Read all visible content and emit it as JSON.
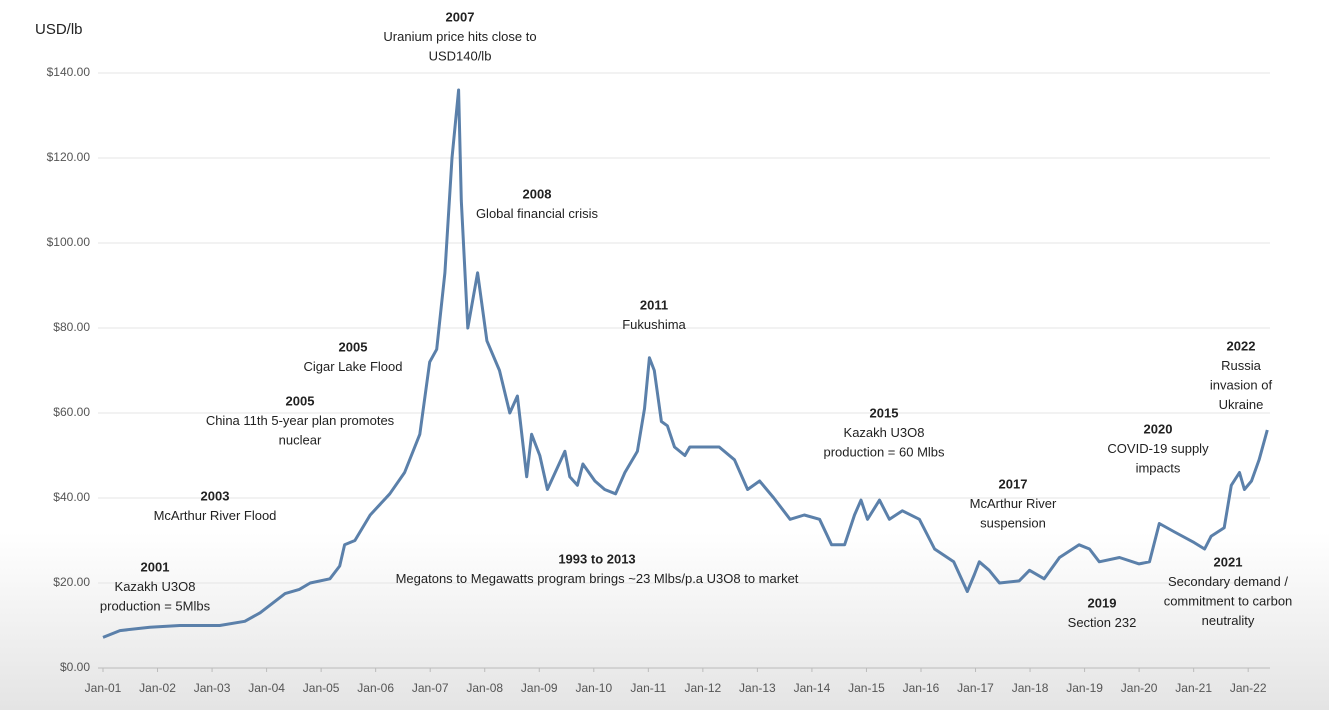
{
  "chart_data": {
    "type": "line",
    "y_axis_label": "USD/lb",
    "x": [
      2001,
      2001.31,
      2001.86,
      2002.41,
      2003.14,
      2003.6,
      2003.88,
      2004.34,
      2004.6,
      2004.8,
      2005.16,
      2005.34,
      2005.43,
      2005.62,
      2005.9,
      2006.26,
      2006.53,
      2006.81,
      2006.99,
      2007.12,
      2007.27,
      2007.4,
      2007.52,
      2007.57,
      2007.69,
      2007.87,
      2008.04,
      2008.27,
      2008.46,
      2008.6,
      2008.77,
      2008.86,
      2009.01,
      2009.15,
      2009.47,
      2009.56,
      2009.7,
      2009.8,
      2010.02,
      2010.2,
      2010.4,
      2010.57,
      2010.8,
      2010.93,
      2011.02,
      2011.11,
      2011.24,
      2011.35,
      2011.48,
      2011.67,
      2011.76,
      2012.3,
      2012.58,
      2012.82,
      2013.04,
      2013.3,
      2013.6,
      2013.86,
      2014.14,
      2014.36,
      2014.6,
      2014.78,
      2014.9,
      2015.02,
      2015.24,
      2015.42,
      2015.66,
      2015.97,
      2016.25,
      2016.6,
      2016.85,
      2016.98,
      2017.07,
      2017.25,
      2017.44,
      2017.8,
      2017.99,
      2018.26,
      2018.54,
      2018.9,
      2019.09,
      2019.27,
      2019.64,
      2020.0,
      2020.19,
      2020.37,
      2020.65,
      2021.01,
      2021.2,
      2021.32,
      2021.56,
      2021.69,
      2021.84,
      2021.93,
      2022.06,
      2022.2,
      2022.35
    ],
    "series": [
      {
        "name": "Uranium price",
        "color": "#5b80aa",
        "values": [
          7.2,
          8.8,
          9.6,
          10,
          10,
          11,
          13,
          17.5,
          18.5,
          20,
          21,
          24,
          29,
          30,
          36,
          41,
          46,
          55,
          72,
          75,
          93,
          120,
          136,
          110,
          80,
          93,
          77,
          70,
          60,
          64,
          45,
          55,
          50,
          42,
          51,
          45,
          43,
          48,
          44,
          42,
          41,
          46,
          51,
          61,
          73,
          70,
          58,
          57,
          52,
          50,
          52,
          52,
          49,
          42,
          44,
          40,
          35,
          36,
          35,
          29,
          29,
          36,
          39.5,
          35,
          39.5,
          35,
          37,
          35,
          28,
          25,
          18,
          22,
          25,
          23,
          20,
          20.5,
          23,
          21,
          26,
          29,
          28,
          25,
          26,
          24.5,
          25,
          34,
          32,
          29.5,
          28,
          31,
          33,
          43,
          46,
          42,
          44,
          49,
          56
        ]
      }
    ],
    "xlim": [
      2001,
      2022.4
    ],
    "xticks": [
      {
        "value": 2001,
        "label": "Jan-01"
      },
      {
        "value": 2002,
        "label": "Jan-02"
      },
      {
        "value": 2003,
        "label": "Jan-03"
      },
      {
        "value": 2004,
        "label": "Jan-04"
      },
      {
        "value": 2005,
        "label": "Jan-05"
      },
      {
        "value": 2006,
        "label": "Jan-06"
      },
      {
        "value": 2007,
        "label": "Jan-07"
      },
      {
        "value": 2008,
        "label": "Jan-08"
      },
      {
        "value": 2009,
        "label": "Jan-09"
      },
      {
        "value": 2010,
        "label": "Jan-10"
      },
      {
        "value": 2011,
        "label": "Jan-11"
      },
      {
        "value": 2012,
        "label": "Jan-12"
      },
      {
        "value": 2013,
        "label": "Jan-13"
      },
      {
        "value": 2014,
        "label": "Jan-14"
      },
      {
        "value": 2015,
        "label": "Jan-15"
      },
      {
        "value": 2016,
        "label": "Jan-16"
      },
      {
        "value": 2017,
        "label": "Jan-17"
      },
      {
        "value": 2018,
        "label": "Jan-18"
      },
      {
        "value": 2019,
        "label": "Jan-19"
      },
      {
        "value": 2020,
        "label": "Jan-20"
      },
      {
        "value": 2021,
        "label": "Jan-21"
      },
      {
        "value": 2022,
        "label": "Jan-22"
      }
    ],
    "ylim": [
      0,
      140
    ],
    "yticks": [
      {
        "value": 0,
        "label": "$0.00"
      },
      {
        "value": 20,
        "label": "$20.00"
      },
      {
        "value": 40,
        "label": "$40.00"
      },
      {
        "value": 60,
        "label": "$60.00"
      },
      {
        "value": 80,
        "label": "$80.00"
      },
      {
        "value": 100,
        "label": "$100.00"
      },
      {
        "value": 120,
        "label": "$120.00"
      },
      {
        "value": 140,
        "label": "$140.00"
      }
    ],
    "grid": true,
    "annotations": [
      {
        "title": "2001",
        "lines": [
          "Kazakh U3O8",
          "production = 5Mlbs"
        ]
      },
      {
        "title": "2003",
        "lines": [
          "McArthur River Flood"
        ]
      },
      {
        "title": "2005",
        "lines": [
          "China 11th 5-year plan promotes",
          "nuclear"
        ]
      },
      {
        "title": "2005",
        "lines": [
          "Cigar Lake Flood"
        ]
      },
      {
        "title": "2007",
        "lines": [
          "Uranium price hits close to",
          "USD140/lb"
        ]
      },
      {
        "title": "2008",
        "lines": [
          "Global financial crisis"
        ]
      },
      {
        "title": "2011",
        "lines": [
          "Fukushima"
        ]
      },
      {
        "title": "2015",
        "lines": [
          "Kazakh U3O8",
          "production = 60 Mlbs"
        ]
      },
      {
        "title": "2017",
        "lines": [
          "McArthur River",
          "suspension"
        ]
      },
      {
        "title": "2019",
        "lines": [
          "Section 232"
        ]
      },
      {
        "title": "1993 to 2013",
        "lines": [
          "Megatons to Megawatts program brings ~23 Mlbs/p.a U3O8 to market"
        ]
      },
      {
        "title": "2020",
        "lines": [
          "COVID-19 supply",
          "impacts"
        ]
      },
      {
        "title": "2021",
        "lines": [
          "Secondary demand /",
          "commitment to carbon",
          "neutrality"
        ]
      },
      {
        "title": "2022",
        "lines": [
          "Russia",
          "invasion of",
          "Ukraine"
        ]
      }
    ]
  }
}
